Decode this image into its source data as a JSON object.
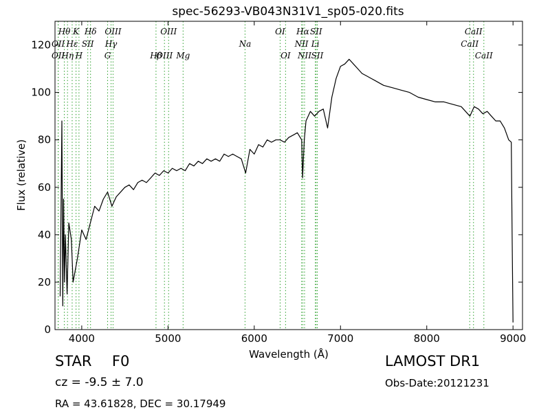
{
  "chart_data": {
    "type": "line",
    "title": "spec-56293-VB043N31V1_sp05-020.fits",
    "xlabel": "Wavelength (Å)",
    "ylabel": "Flux (relative)",
    "xlim": [
      3690,
      9110
    ],
    "ylim": [
      0,
      130
    ],
    "x_ticks": [
      4000,
      5000,
      6000,
      7000,
      8000,
      9000
    ],
    "y_ticks": [
      0,
      20,
      40,
      60,
      80,
      100,
      120
    ],
    "grid": false,
    "line_color": "#000000",
    "marker_color": "#2ca02c",
    "spectrum": [
      [
        3750,
        14
      ],
      [
        3770,
        88
      ],
      [
        3780,
        10
      ],
      [
        3790,
        55
      ],
      [
        3800,
        20
      ],
      [
        3810,
        40
      ],
      [
        3830,
        15
      ],
      [
        3850,
        45
      ],
      [
        3880,
        38
      ],
      [
        3900,
        20
      ],
      [
        3950,
        30
      ],
      [
        4000,
        42
      ],
      [
        4050,
        38
      ],
      [
        4100,
        45
      ],
      [
        4150,
        52
      ],
      [
        4200,
        50
      ],
      [
        4250,
        55
      ],
      [
        4300,
        58
      ],
      [
        4350,
        52
      ],
      [
        4400,
        56
      ],
      [
        4450,
        58
      ],
      [
        4500,
        60
      ],
      [
        4550,
        61
      ],
      [
        4600,
        59
      ],
      [
        4650,
        62
      ],
      [
        4700,
        63
      ],
      [
        4750,
        62
      ],
      [
        4800,
        64
      ],
      [
        4850,
        66
      ],
      [
        4900,
        65
      ],
      [
        4950,
        67
      ],
      [
        5000,
        66
      ],
      [
        5050,
        68
      ],
      [
        5100,
        67
      ],
      [
        5150,
        68
      ],
      [
        5200,
        67
      ],
      [
        5250,
        70
      ],
      [
        5300,
        69
      ],
      [
        5350,
        71
      ],
      [
        5400,
        70
      ],
      [
        5450,
        72
      ],
      [
        5500,
        71
      ],
      [
        5550,
        72
      ],
      [
        5600,
        71
      ],
      [
        5650,
        74
      ],
      [
        5700,
        73
      ],
      [
        5750,
        74
      ],
      [
        5800,
        73
      ],
      [
        5850,
        72
      ],
      [
        5900,
        66
      ],
      [
        5950,
        76
      ],
      [
        6000,
        74
      ],
      [
        6050,
        78
      ],
      [
        6100,
        77
      ],
      [
        6150,
        80
      ],
      [
        6200,
        79
      ],
      [
        6250,
        80
      ],
      [
        6300,
        80
      ],
      [
        6350,
        79
      ],
      [
        6400,
        81
      ],
      [
        6450,
        82
      ],
      [
        6500,
        83
      ],
      [
        6550,
        80
      ],
      [
        6560,
        64
      ],
      [
        6580,
        80
      ],
      [
        6600,
        88
      ],
      [
        6650,
        92
      ],
      [
        6700,
        90
      ],
      [
        6750,
        92
      ],
      [
        6800,
        93
      ],
      [
        6850,
        85
      ],
      [
        6900,
        98
      ],
      [
        6950,
        106
      ],
      [
        7000,
        111
      ],
      [
        7050,
        112
      ],
      [
        7100,
        114
      ],
      [
        7150,
        112
      ],
      [
        7200,
        110
      ],
      [
        7250,
        108
      ],
      [
        7300,
        107
      ],
      [
        7350,
        106
      ],
      [
        7400,
        105
      ],
      [
        7450,
        104
      ],
      [
        7500,
        103
      ],
      [
        7600,
        102
      ],
      [
        7700,
        101
      ],
      [
        7800,
        100
      ],
      [
        7900,
        98
      ],
      [
        8000,
        97
      ],
      [
        8100,
        96
      ],
      [
        8200,
        96
      ],
      [
        8300,
        95
      ],
      [
        8400,
        94
      ],
      [
        8500,
        90
      ],
      [
        8550,
        94
      ],
      [
        8600,
        93
      ],
      [
        8650,
        91
      ],
      [
        8700,
        92
      ],
      [
        8750,
        90
      ],
      [
        8800,
        88
      ],
      [
        8850,
        88
      ],
      [
        8900,
        85
      ],
      [
        8950,
        80
      ],
      [
        8980,
        79
      ],
      [
        8990,
        40
      ],
      [
        9000,
        3
      ]
    ],
    "lines": [
      {
        "label": "Hθ",
        "x": 3798,
        "row": 1
      },
      {
        "label": "K",
        "x": 3934,
        "row": 1
      },
      {
        "label": "Hδ",
        "x": 4102,
        "row": 1
      },
      {
        "label": "OIII",
        "x": 4363,
        "row": 1
      },
      {
        "label": "OIII",
        "x": 5007,
        "row": 1
      },
      {
        "label": "OI",
        "x": 6300,
        "row": 1
      },
      {
        "label": "Hα",
        "x": 6563,
        "row": 1
      },
      {
        "label": "SII",
        "x": 6717,
        "row": 1
      },
      {
        "label": "CaII",
        "x": 8542,
        "row": 1
      },
      {
        "label": "OII",
        "x": 3727,
        "row": 2
      },
      {
        "label": "Hε",
        "x": 3889,
        "row": 2
      },
      {
        "label": "SII",
        "x": 4070,
        "row": 2
      },
      {
        "label": "Hγ",
        "x": 4340,
        "row": 2
      },
      {
        "label": "Na",
        "x": 5893,
        "row": 2
      },
      {
        "label": "NII",
        "x": 6548,
        "row": 2
      },
      {
        "label": "Li",
        "x": 6708,
        "row": 2
      },
      {
        "label": "CaII",
        "x": 8498,
        "row": 2
      },
      {
        "label": "OII",
        "x": 3727,
        "row": 3
      },
      {
        "label": "Hη",
        "x": 3835,
        "row": 3
      },
      {
        "label": "H",
        "x": 3968,
        "row": 3
      },
      {
        "label": "G",
        "x": 4300,
        "row": 3
      },
      {
        "label": "Hβ",
        "x": 4861,
        "row": 3
      },
      {
        "label": "OIII",
        "x": 4959,
        "row": 3
      },
      {
        "label": "Mg",
        "x": 5175,
        "row": 3
      },
      {
        "label": "OI",
        "x": 6363,
        "row": 3
      },
      {
        "label": "NII",
        "x": 6583,
        "row": 3
      },
      {
        "label": "SII",
        "x": 6731,
        "row": 3
      },
      {
        "label": "CaII",
        "x": 8662,
        "row": 3
      }
    ]
  },
  "info": {
    "class": "STAR",
    "subclass": "F0",
    "survey": "LAMOST DR1",
    "cz": "cz = -9.5 ± 7.0",
    "obs_date": "Obs-Date:20121231",
    "radec": "RA = 43.61828, DEC = 30.17949"
  }
}
